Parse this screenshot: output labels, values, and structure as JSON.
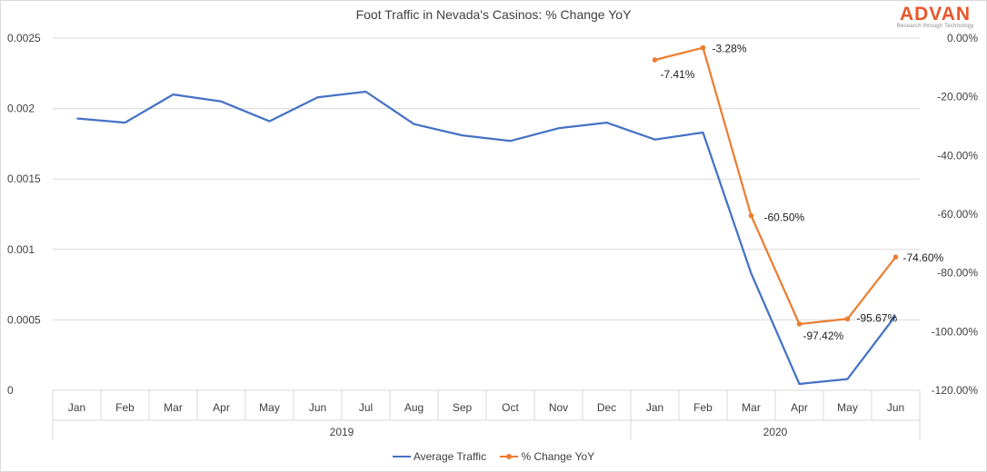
{
  "chart_data": {
    "type": "line",
    "title": "Foot Traffic in Nevada's Casinos: % Change YoY",
    "categories": [
      "Jan",
      "Feb",
      "Mar",
      "Apr",
      "May",
      "Jun",
      "Jul",
      "Aug",
      "Sep",
      "Oct",
      "Nov",
      "Dec",
      "Jan",
      "Feb",
      "Mar",
      "Apr",
      "May",
      "Jun"
    ],
    "groups": [
      {
        "label": "2019",
        "start": 0,
        "end": 11
      },
      {
        "label": "2020",
        "start": 12,
        "end": 17
      }
    ],
    "y_left": {
      "ylim": [
        0,
        0.0025
      ],
      "ticks": [
        0,
        0.0005,
        0.001,
        0.0015,
        0.002,
        0.0025
      ],
      "tick_labels": [
        "0",
        "0.0005",
        "0.001",
        "0.0015",
        "0.002",
        "0.0025"
      ]
    },
    "y_right": {
      "ylim": [
        -120,
        0
      ],
      "ticks": [
        0,
        -20,
        -40,
        -60,
        -80,
        -100,
        -120
      ],
      "tick_labels": [
        "0.00%",
        "-20.00%",
        "-40.00%",
        "-60.00%",
        "-80.00%",
        "-100.00%",
        "-120.00%"
      ]
    },
    "series": [
      {
        "name": "Average Traffic",
        "axis": "left",
        "color": "#4472c4",
        "values": [
          0.00193,
          0.0019,
          0.0021,
          0.00205,
          0.00191,
          0.00208,
          0.00212,
          0.00189,
          0.00181,
          0.00177,
          0.00186,
          0.0019,
          0.00178,
          0.00183,
          0.00083,
          4.5e-05,
          8e-05,
          0.00053
        ]
      },
      {
        "name": "% Change YoY",
        "axis": "right",
        "color": "#ed7d31",
        "values": [
          null,
          null,
          null,
          null,
          null,
          null,
          null,
          null,
          null,
          null,
          null,
          null,
          -7.41,
          -3.28,
          -60.5,
          -97.42,
          -95.67,
          -74.6
        ],
        "data_labels": [
          null,
          null,
          null,
          null,
          null,
          null,
          null,
          null,
          null,
          null,
          null,
          null,
          "-7.41%",
          "-3.28%",
          "-60.50%",
          "-97.42%",
          "-95.67%",
          "-74.60%"
        ]
      }
    ]
  },
  "logo": {
    "word": "ADVAN",
    "tagline": "Research through Technology",
    "color": "#e8572a"
  }
}
